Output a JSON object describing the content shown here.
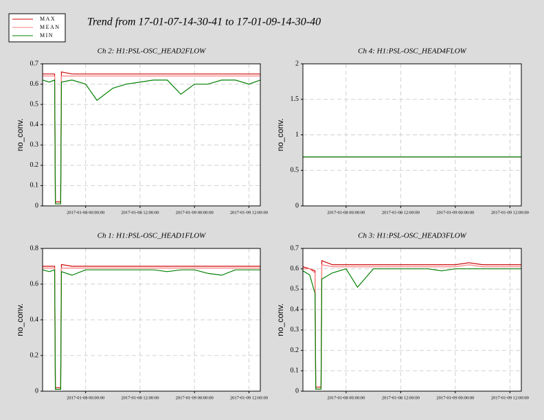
{
  "title": "Trend from 17-01-07-14-30-41 to 17-01-09-14-30-40",
  "chart_data": [
    {
      "type": "line",
      "title": "Ch 2: H1:PSL-OSC_HEAD2FLOW",
      "ylabel": "no_conv.",
      "x": [
        "2017-01-07 14:30:41",
        "2017-01-07 16:00:00",
        "2017-01-07 17:10:00",
        "2017-01-07 17:20:00",
        "2017-01-07 18:30:00",
        "2017-01-07 18:40:00",
        "2017-01-07 21:00:00",
        "2017-01-08 00:00:00",
        "2017-01-08 02:30:00",
        "2017-01-08 06:00:00",
        "2017-01-08 09:00:00",
        "2017-01-08 12:00:00",
        "2017-01-08 15:00:00",
        "2017-01-08 18:00:00",
        "2017-01-08 21:00:00",
        "2017-01-09 00:00:00",
        "2017-01-09 03:00:00",
        "2017-01-09 06:00:00",
        "2017-01-09 09:00:00",
        "2017-01-09 12:00:00",
        "2017-01-09 14:30:40"
      ],
      "series": [
        {
          "name": "MAX",
          "color": "#cc0000",
          "values": [
            0.65,
            0.65,
            0.65,
            0.02,
            0.02,
            0.66,
            0.65,
            0.65,
            0.65,
            0.65,
            0.65,
            0.65,
            0.65,
            0.65,
            0.65,
            0.65,
            0.65,
            0.65,
            0.65,
            0.65,
            0.65
          ]
        },
        {
          "name": "MEAN",
          "color": "#ff8080",
          "values": [
            0.64,
            0.64,
            0.64,
            0.01,
            0.01,
            0.64,
            0.64,
            0.64,
            0.64,
            0.64,
            0.64,
            0.64,
            0.64,
            0.64,
            0.64,
            0.64,
            0.64,
            0.64,
            0.64,
            0.64,
            0.64
          ]
        },
        {
          "name": "MIN",
          "color": "#008000",
          "values": [
            0.62,
            0.61,
            0.62,
            0.01,
            0.01,
            0.61,
            0.62,
            0.6,
            0.52,
            0.58,
            0.6,
            0.61,
            0.62,
            0.62,
            0.55,
            0.6,
            0.6,
            0.62,
            0.62,
            0.6,
            0.62
          ]
        }
      ],
      "xlim": [
        "2017-01-07 14:30:41",
        "2017-01-09 14:30:40"
      ],
      "xticks": [
        "2017-01-08 00:00:00",
        "2017-01-08 12:00:00",
        "2017-01-09 00:00:00",
        "2017-01-09 12:00:00"
      ],
      "ylim": [
        0,
        0.7
      ],
      "yticks": [
        0,
        0.1,
        0.2,
        0.3,
        0.4,
        0.5,
        0.6,
        0.7
      ],
      "grid": true
    },
    {
      "type": "line",
      "title": "Ch 4: H1:PSL-OSC_HEAD4FLOW",
      "ylabel": "no_conv.",
      "x": [
        "2017-01-07 14:30:41",
        "2017-01-09 14:30:40"
      ],
      "series": [
        {
          "name": "MAX",
          "color": "#cc0000",
          "values": [
            0.69,
            0.69
          ]
        },
        {
          "name": "MEAN",
          "color": "#ff8080",
          "values": [
            0.69,
            0.69
          ]
        },
        {
          "name": "MIN",
          "color": "#008000",
          "values": [
            0.69,
            0.69
          ]
        }
      ],
      "xlim": [
        "2017-01-07 14:30:41",
        "2017-01-09 14:30:40"
      ],
      "xticks": [
        "2017-01-08 00:00:00",
        "2017-01-08 12:00:00",
        "2017-01-09 00:00:00",
        "2017-01-09 12:00:00"
      ],
      "ylim": [
        0,
        2
      ],
      "yticks": [
        0,
        0.5,
        1,
        1.5,
        2
      ],
      "grid": true
    },
    {
      "type": "line",
      "title": "Ch 1: H1:PSL-OSC_HEAD1FLOW",
      "ylabel": "no_conv.",
      "x": [
        "2017-01-07 14:30:41",
        "2017-01-07 16:00:00",
        "2017-01-07 17:10:00",
        "2017-01-07 17:20:00",
        "2017-01-07 18:30:00",
        "2017-01-07 18:40:00",
        "2017-01-07 21:00:00",
        "2017-01-08 00:00:00",
        "2017-01-08 02:30:00",
        "2017-01-08 06:00:00",
        "2017-01-08 09:00:00",
        "2017-01-08 12:00:00",
        "2017-01-08 15:00:00",
        "2017-01-08 18:00:00",
        "2017-01-08 21:00:00",
        "2017-01-09 00:00:00",
        "2017-01-09 03:00:00",
        "2017-01-09 06:00:00",
        "2017-01-09 09:00:00",
        "2017-01-09 12:00:00",
        "2017-01-09 14:30:40"
      ],
      "series": [
        {
          "name": "MAX",
          "color": "#cc0000",
          "values": [
            0.7,
            0.7,
            0.7,
            0.02,
            0.02,
            0.71,
            0.7,
            0.7,
            0.7,
            0.7,
            0.7,
            0.7,
            0.7,
            0.7,
            0.7,
            0.7,
            0.7,
            0.7,
            0.7,
            0.7,
            0.7
          ]
        },
        {
          "name": "MEAN",
          "color": "#ff8080",
          "values": [
            0.69,
            0.69,
            0.69,
            0.01,
            0.01,
            0.69,
            0.69,
            0.69,
            0.69,
            0.69,
            0.69,
            0.69,
            0.69,
            0.69,
            0.69,
            0.69,
            0.69,
            0.69,
            0.69,
            0.69,
            0.69
          ]
        },
        {
          "name": "MIN",
          "color": "#008000",
          "values": [
            0.68,
            0.67,
            0.68,
            0.01,
            0.01,
            0.67,
            0.65,
            0.68,
            0.68,
            0.68,
            0.68,
            0.68,
            0.68,
            0.67,
            0.68,
            0.68,
            0.66,
            0.65,
            0.68,
            0.68,
            0.68
          ]
        }
      ],
      "xlim": [
        "2017-01-07 14:30:41",
        "2017-01-09 14:30:40"
      ],
      "xticks": [
        "2017-01-08 00:00:00",
        "2017-01-08 12:00:00",
        "2017-01-09 00:00:00",
        "2017-01-09 12:00:00"
      ],
      "ylim": [
        0,
        0.8
      ],
      "yticks": [
        0,
        0.2,
        0.4,
        0.6,
        0.8
      ],
      "grid": true
    },
    {
      "type": "line",
      "title": "Ch 3: H1:PSL-OSC_HEAD3FLOW",
      "ylabel": "no_conv.",
      "x": [
        "2017-01-07 14:30:41",
        "2017-01-07 16:00:00",
        "2017-01-07 17:10:00",
        "2017-01-07 17:20:00",
        "2017-01-07 18:30:00",
        "2017-01-07 18:40:00",
        "2017-01-07 21:00:00",
        "2017-01-08 00:00:00",
        "2017-01-08 02:30:00",
        "2017-01-08 06:00:00",
        "2017-01-08 09:00:00",
        "2017-01-08 12:00:00",
        "2017-01-08 15:00:00",
        "2017-01-08 18:00:00",
        "2017-01-08 21:00:00",
        "2017-01-09 00:00:00",
        "2017-01-09 03:00:00",
        "2017-01-09 06:00:00",
        "2017-01-09 09:00:00",
        "2017-01-09 12:00:00",
        "2017-01-09 14:30:40"
      ],
      "series": [
        {
          "name": "MAX",
          "color": "#cc0000",
          "values": [
            0.61,
            0.6,
            0.59,
            0.02,
            0.02,
            0.64,
            0.62,
            0.62,
            0.62,
            0.62,
            0.62,
            0.62,
            0.62,
            0.62,
            0.62,
            0.62,
            0.63,
            0.62,
            0.62,
            0.62,
            0.62
          ]
        },
        {
          "name": "MEAN",
          "color": "#ff8080",
          "values": [
            0.6,
            0.6,
            0.58,
            0.01,
            0.01,
            0.62,
            0.61,
            0.61,
            0.61,
            0.61,
            0.61,
            0.61,
            0.61,
            0.61,
            0.61,
            0.61,
            0.62,
            0.61,
            0.61,
            0.61,
            0.61
          ]
        },
        {
          "name": "MIN",
          "color": "#008000",
          "values": [
            0.59,
            0.57,
            0.48,
            0.01,
            0.01,
            0.55,
            0.58,
            0.6,
            0.51,
            0.6,
            0.6,
            0.6,
            0.6,
            0.6,
            0.59,
            0.6,
            0.6,
            0.6,
            0.6,
            0.6,
            0.6
          ]
        }
      ],
      "xlim": [
        "2017-01-07 14:30:41",
        "2017-01-09 14:30:40"
      ],
      "xticks": [
        "2017-01-08 00:00:00",
        "2017-01-08 12:00:00",
        "2017-01-09 00:00:00",
        "2017-01-09 12:00:00"
      ],
      "ylim": [
        0,
        0.7
      ],
      "yticks": [
        0,
        0.1,
        0.2,
        0.3,
        0.4,
        0.5,
        0.6,
        0.7
      ],
      "grid": true
    }
  ]
}
